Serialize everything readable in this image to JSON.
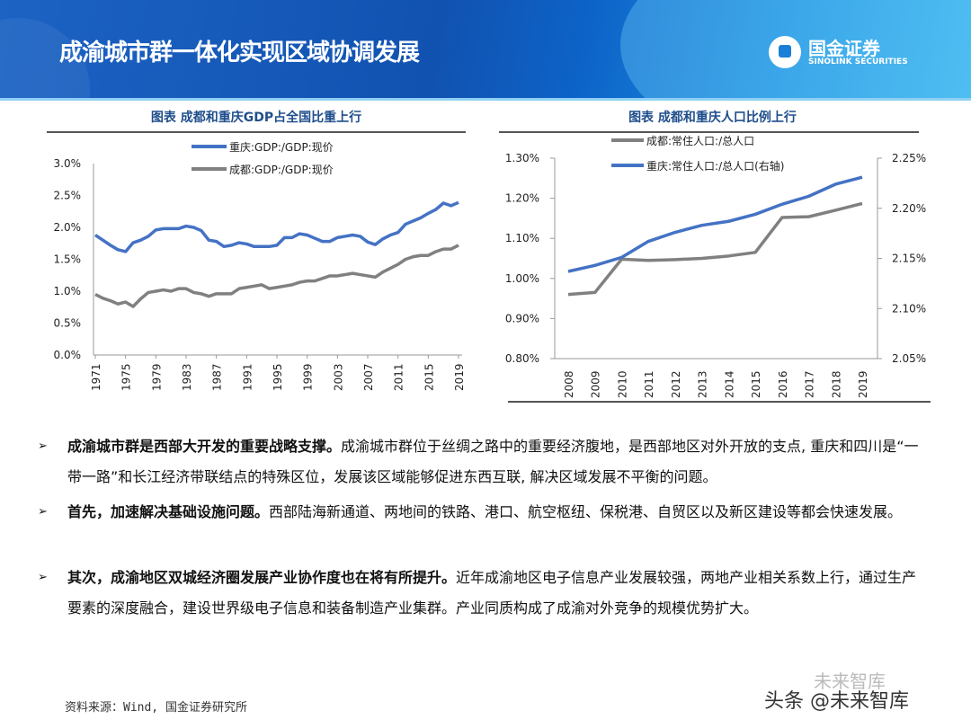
{
  "header": {
    "title": "成渝城市群一体化实现区域协调发展",
    "logo_cn": "国金证券",
    "logo_en": "SINOLINK SECURITIES"
  },
  "chart_data": [
    {
      "type": "line",
      "title": "图表 成都和重庆GDP占全国比重上行",
      "x": [
        1971,
        1972,
        1973,
        1974,
        1975,
        1976,
        1977,
        1978,
        1979,
        1980,
        1981,
        1982,
        1983,
        1984,
        1985,
        1986,
        1987,
        1988,
        1989,
        1990,
        1991,
        1992,
        1993,
        1994,
        1995,
        1996,
        1997,
        1998,
        1999,
        2000,
        2001,
        2002,
        2003,
        2004,
        2005,
        2006,
        2007,
        2008,
        2009,
        2010,
        2011,
        2012,
        2013,
        2014,
        2015,
        2016,
        2017,
        2018,
        2019
      ],
      "xticks": [
        "1971",
        "1975",
        "1979",
        "1983",
        "1987",
        "1991",
        "1995",
        "1999",
        "2003",
        "2007",
        "2011",
        "2015",
        "2019"
      ],
      "ylim": [
        0,
        3.0
      ],
      "yticks": [
        "0.0%",
        "0.5%",
        "1.0%",
        "1.5%",
        "2.0%",
        "2.5%",
        "3.0%"
      ],
      "legend": "top-center",
      "series": [
        {
          "name": "重庆:GDP:/GDP:现价",
          "color": "#4472c4",
          "values": [
            1.88,
            1.8,
            1.72,
            1.65,
            1.62,
            1.76,
            1.8,
            1.86,
            1.96,
            1.98,
            1.98,
            1.98,
            2.02,
            2.0,
            1.95,
            1.8,
            1.78,
            1.7,
            1.72,
            1.76,
            1.74,
            1.7,
            1.7,
            1.7,
            1.72,
            1.84,
            1.84,
            1.9,
            1.88,
            1.83,
            1.78,
            1.78,
            1.84,
            1.86,
            1.88,
            1.86,
            1.77,
            1.73,
            1.82,
            1.88,
            1.92,
            2.05,
            2.1,
            2.15,
            2.22,
            2.28,
            2.38,
            2.34,
            2.39
          ]
        },
        {
          "name": "成都:GDP:/GDP:现价",
          "color": "#808080",
          "values": [
            0.95,
            0.89,
            0.85,
            0.8,
            0.83,
            0.76,
            0.88,
            0.98,
            1.0,
            1.02,
            1.0,
            1.04,
            1.04,
            0.98,
            0.96,
            0.92,
            0.96,
            0.96,
            0.96,
            1.04,
            1.06,
            1.08,
            1.1,
            1.04,
            1.06,
            1.08,
            1.1,
            1.14,
            1.16,
            1.16,
            1.2,
            1.24,
            1.24,
            1.26,
            1.28,
            1.26,
            1.24,
            1.22,
            1.3,
            1.36,
            1.42,
            1.5,
            1.54,
            1.56,
            1.56,
            1.62,
            1.66,
            1.66,
            1.72
          ]
        }
      ]
    },
    {
      "type": "line",
      "title": "图表 成都和重庆人口比例上行",
      "x": [
        "2008",
        "2009",
        "2010",
        "2011",
        "2012",
        "2013",
        "2014",
        "2015",
        "2016",
        "2017",
        "2018",
        "2019"
      ],
      "ylim": [
        0.8,
        1.3
      ],
      "yticks": [
        "0.80%",
        "0.90%",
        "1.00%",
        "1.10%",
        "1.20%",
        "1.30%"
      ],
      "y2lim": [
        2.05,
        2.25
      ],
      "y2ticks": [
        "2.05%",
        "2.10%",
        "2.15%",
        "2.20%",
        "2.25%"
      ],
      "legend": "top-center",
      "series": [
        {
          "name": "成都:常住人口:/总人口",
          "color": "#808080",
          "axis": "left",
          "values": [
            0.96,
            0.965,
            1.048,
            1.045,
            1.047,
            1.05,
            1.056,
            1.065,
            1.152,
            1.154,
            1.17,
            1.187
          ]
        },
        {
          "name": "重庆:常住人口:/总人口(右轴)",
          "color": "#4472c4",
          "axis": "right",
          "values": [
            2.137,
            2.143,
            2.151,
            2.167,
            2.176,
            2.183,
            2.187,
            2.194,
            2.204,
            2.212,
            2.224,
            2.231
          ]
        }
      ]
    }
  ],
  "bullets": [
    {
      "bold": "成渝城市群是西部大开发的重要战略支撑。",
      "text": "成渝城市群位于丝绸之路中的重要经济腹地，是西部地区对外开放的支点, 重庆和四川是“一带一路”和长江经济带联结点的特殊区位，发展该区域能够促进东西互联, 解决区域发展不平衡的问题。"
    },
    {
      "bold": "首先，加速解决基础设施问题。",
      "text": "西部陆海新通道、两地间的铁路、港口、航空枢纽、保税港、自贸区以及新区建设等都会快速发展。"
    },
    {
      "bold": "其次，成渝地区双城经济圈发展产业协作度也在将有所提升。",
      "text": "近年成渝地区电子信息产业发展较强，两地产业相关系数上行，通过生产要素的深度融合，建设世界级电子信息和装备制造产业集群。产业同质构成了成渝对外竞争的规模优势扩大。"
    }
  ],
  "source": "资料来源：Wind, 国金证券研究所",
  "watermark": {
    "main": "头条 @未来智库",
    "faint": "未来智库"
  }
}
